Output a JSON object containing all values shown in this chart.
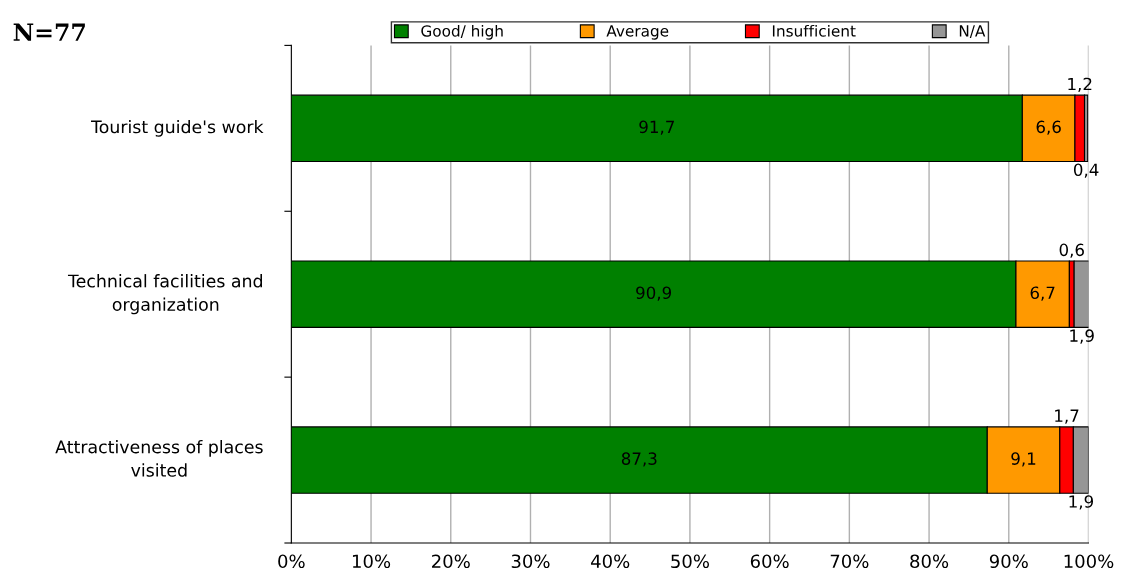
{
  "chart_data": {
    "type": "bar",
    "orientation": "horizontal",
    "stacked": true,
    "title": "N=77",
    "categories": [
      "Tourist guide's work",
      "Technical facilities and\norganization",
      "Attractiveness of places\nvisited"
    ],
    "series": [
      {
        "name": "Good/ high",
        "color": "#008000",
        "values": [
          91.7,
          90.9,
          87.3
        ],
        "value_labels": [
          "91,7",
          "90,9",
          "87,3"
        ]
      },
      {
        "name": "Average",
        "color": "#ff9900",
        "values": [
          6.6,
          6.7,
          9.1
        ],
        "value_labels": [
          "6,6",
          "6,7",
          "9,1"
        ]
      },
      {
        "name": "Insufficient",
        "color": "#ff0000",
        "values": [
          1.2,
          0.6,
          1.7
        ],
        "value_labels": [
          "1,2",
          "0,6",
          "1,7"
        ]
      },
      {
        "name": "N/A",
        "color": "#969696",
        "values": [
          0.4,
          1.9,
          1.9
        ],
        "value_labels": [
          "0,4",
          "1,9",
          "1,9"
        ]
      }
    ],
    "xlim": [
      0,
      100
    ],
    "xticks": [
      {
        "value": 0,
        "label": "0%"
      },
      {
        "value": 10,
        "label": "10%"
      },
      {
        "value": 20,
        "label": "20%"
      },
      {
        "value": 30,
        "label": "30%"
      },
      {
        "value": 40,
        "label": "40%"
      },
      {
        "value": 50,
        "label": "50%"
      },
      {
        "value": 60,
        "label": "60%"
      },
      {
        "value": 70,
        "label": "70%"
      },
      {
        "value": 80,
        "label": "80%"
      },
      {
        "value": 90,
        "label": "90%"
      },
      {
        "value": 100,
        "label": "100%"
      }
    ],
    "grid": "x",
    "legend": "top"
  }
}
